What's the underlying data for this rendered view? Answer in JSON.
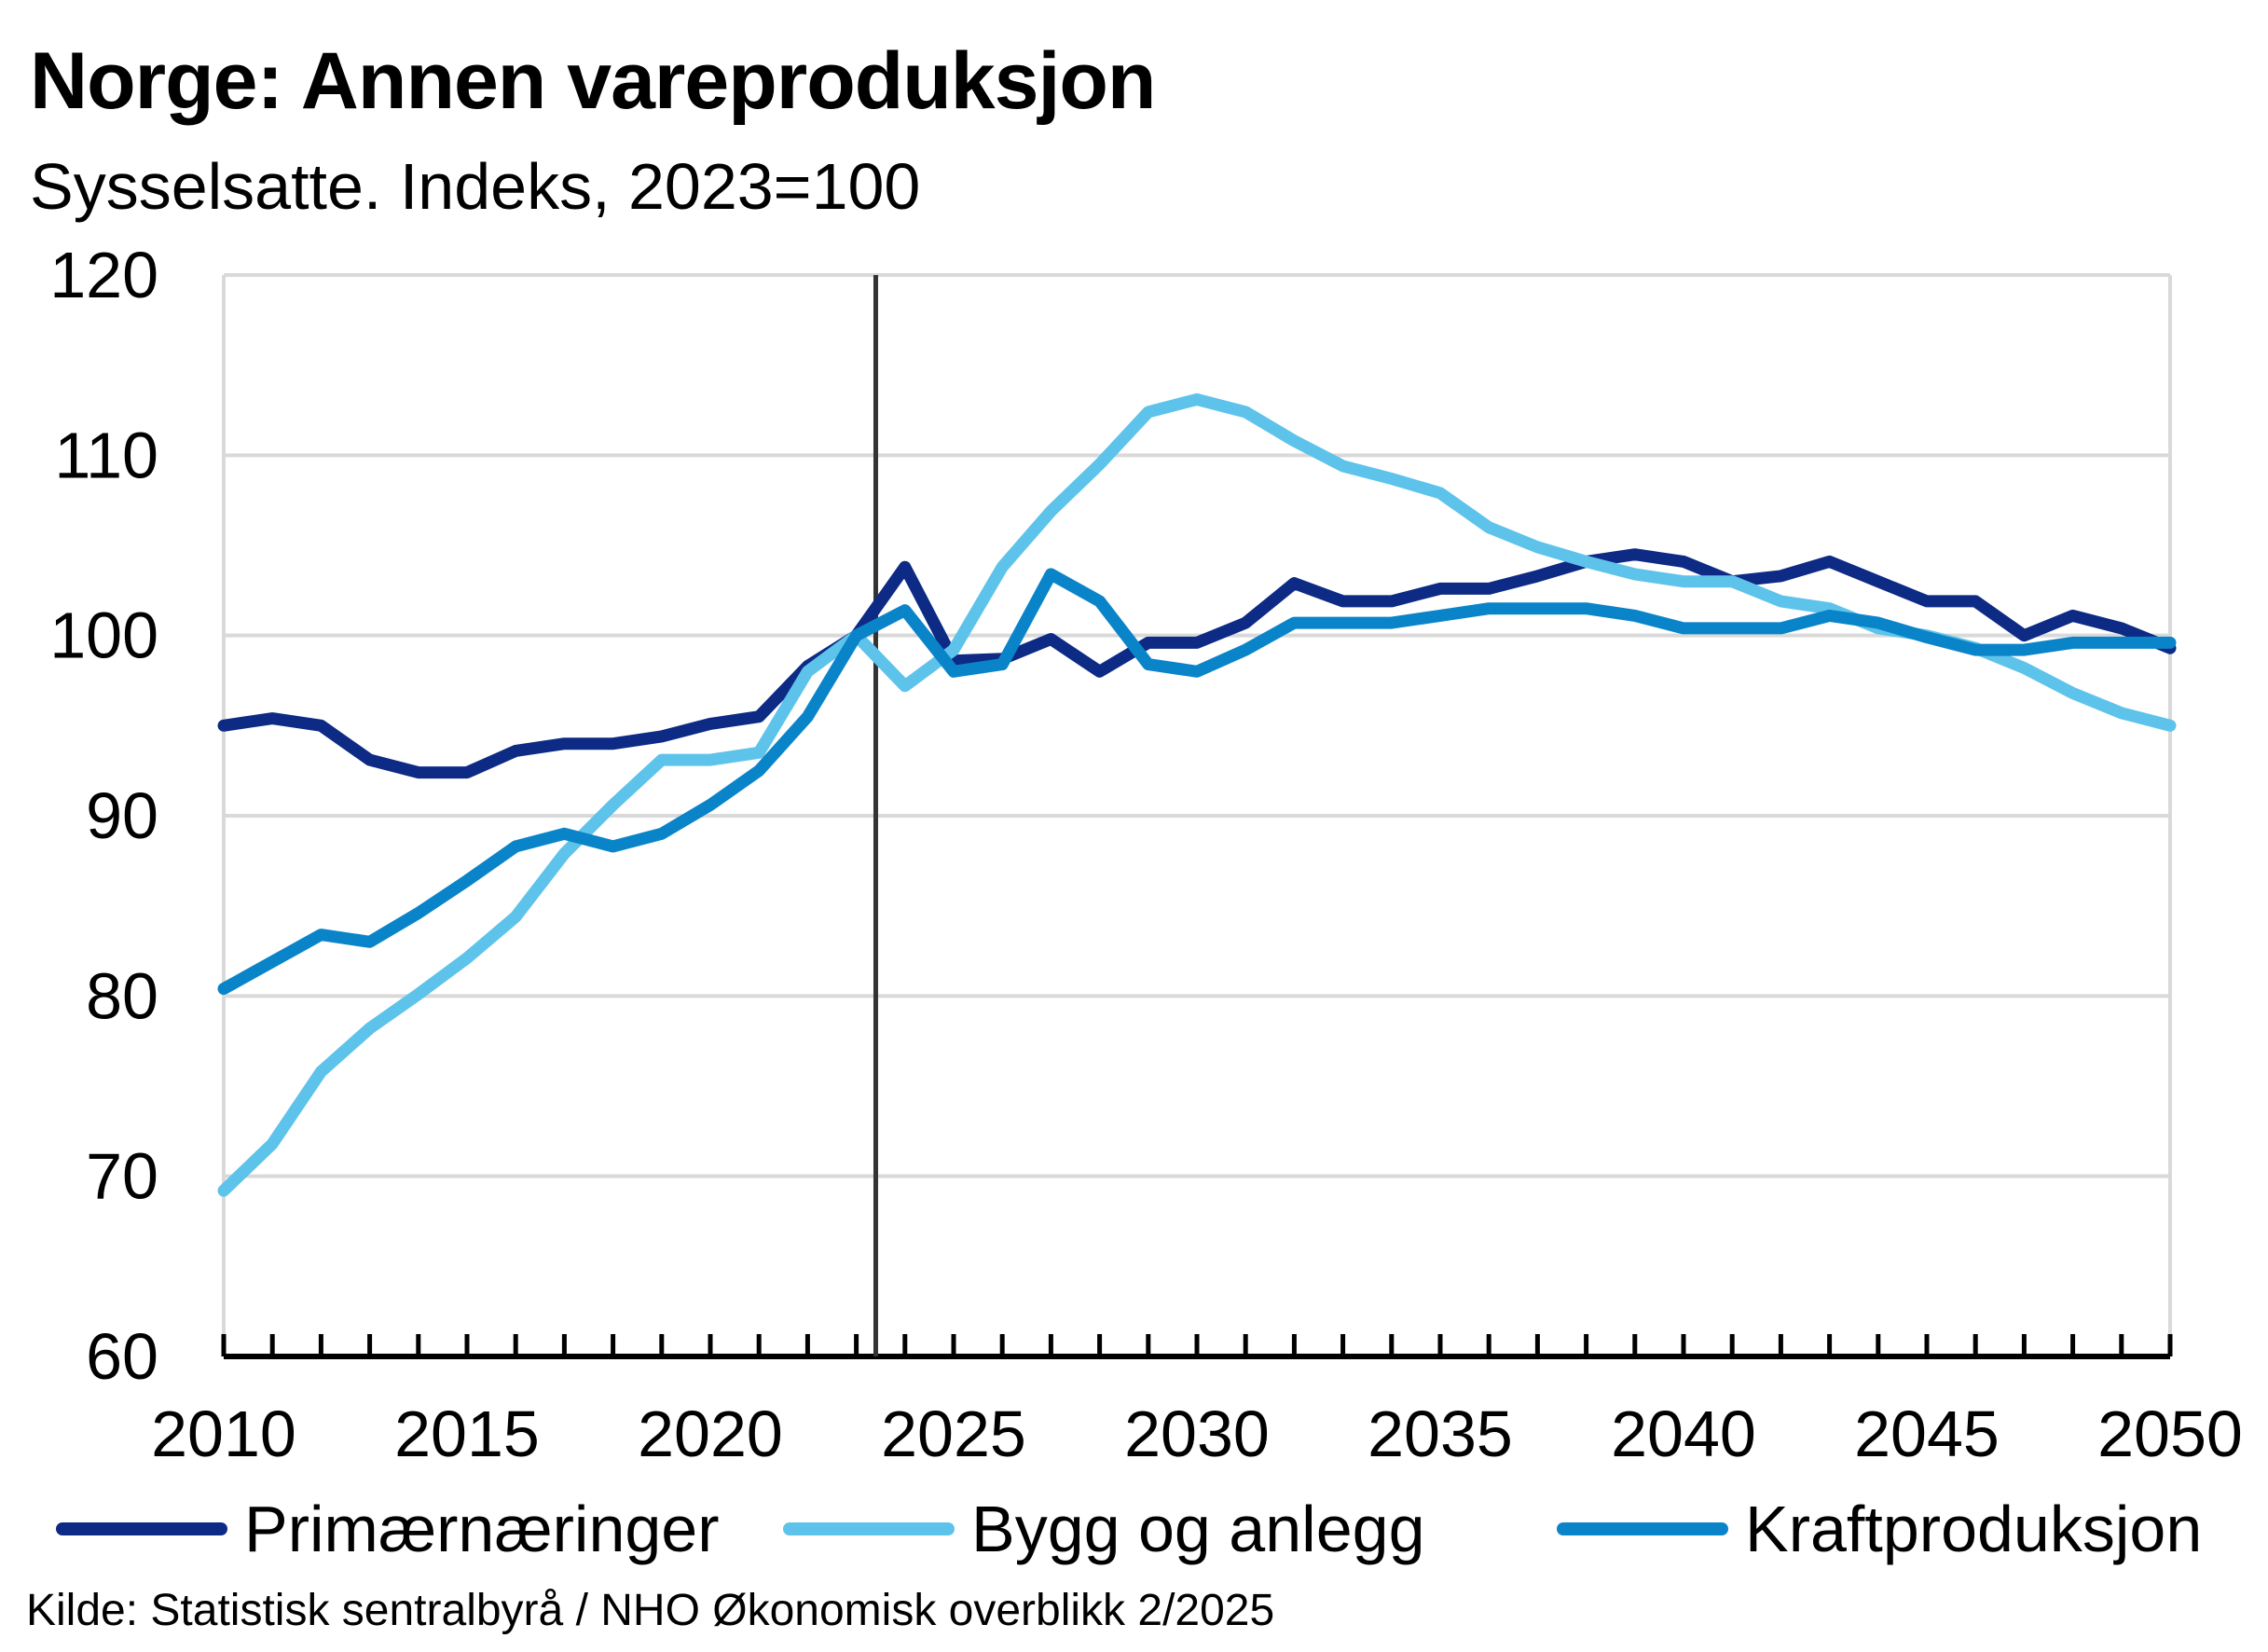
{
  "chart_data": {
    "type": "line",
    "title": "Norge:  Annen vareproduksjon",
    "subtitle": "Sysselsatte. Indeks, 2023=100",
    "xlabel": "",
    "ylabel": "",
    "xlim": [
      2010,
      2050
    ],
    "ylim": [
      60,
      120
    ],
    "y_ticks": [
      60,
      70,
      80,
      90,
      100,
      110,
      120
    ],
    "x_ticks": [
      2010,
      2015,
      2020,
      2025,
      2030,
      2035,
      2040,
      2045,
      2050
    ],
    "grid": "horizontal",
    "vertical_marker_x": 2023.4,
    "legend_position": "bottom",
    "x": [
      2010,
      2011,
      2012,
      2013,
      2014,
      2015,
      2016,
      2017,
      2018,
      2019,
      2020,
      2021,
      2022,
      2023,
      2024,
      2025,
      2026,
      2027,
      2028,
      2029,
      2030,
      2031,
      2032,
      2033,
      2034,
      2035,
      2036,
      2037,
      2038,
      2039,
      2040,
      2041,
      2042,
      2043,
      2044,
      2045,
      2046,
      2047,
      2048,
      2049,
      2050
    ],
    "series": [
      {
        "name": "Primærnæringer",
        "color": "#0d2a85",
        "values": [
          95,
          95.4,
          95,
          93.1,
          92.4,
          92.4,
          93.6,
          94,
          94,
          94.4,
          95.1,
          95.5,
          98.3,
          100,
          103.8,
          98.6,
          98.7,
          99.8,
          98,
          99.6,
          99.6,
          100.7,
          102.9,
          101.9,
          101.9,
          102.6,
          102.6,
          103.3,
          104.1,
          104.5,
          104.1,
          103,
          103.3,
          104.1,
          103,
          101.9,
          101.9,
          100,
          101.1,
          100.4,
          99.3
        ]
      },
      {
        "name": "Bygg og anlegg",
        "color": "#5ec3ea",
        "values": [
          69.2,
          71.8,
          75.8,
          78.2,
          80.1,
          82.1,
          84.4,
          87.9,
          90.6,
          93.1,
          93.1,
          93.5,
          98,
          100,
          97.2,
          99.2,
          103.8,
          106.9,
          109.5,
          112.4,
          113.1,
          112.4,
          110.8,
          109.4,
          108.7,
          107.9,
          106,
          104.9,
          104.1,
          103.4,
          103,
          103,
          101.9,
          101.5,
          100.4,
          100,
          99.3,
          98.2,
          96.8,
          95.7,
          95
        ]
      },
      {
        "name": "Kraftproduksjon",
        "color": "#0a84c9",
        "values": [
          80.4,
          81.9,
          83.4,
          83,
          84.6,
          86.4,
          88.3,
          89,
          88.3,
          89,
          90.6,
          92.5,
          95.5,
          100,
          101.4,
          98,
          98.4,
          103.4,
          101.9,
          98.4,
          98,
          99.2,
          100.7,
          100.7,
          100.7,
          101.1,
          101.5,
          101.5,
          101.5,
          101.1,
          100.4,
          100.4,
          100.4,
          101.1,
          100.7,
          99.9,
          99.2,
          99.2,
          99.6,
          99.6,
          99.6
        ]
      }
    ]
  },
  "source": "Kilde: Statistisk sentralbyrå / NHO Økonomisk overblikk 2/2025"
}
